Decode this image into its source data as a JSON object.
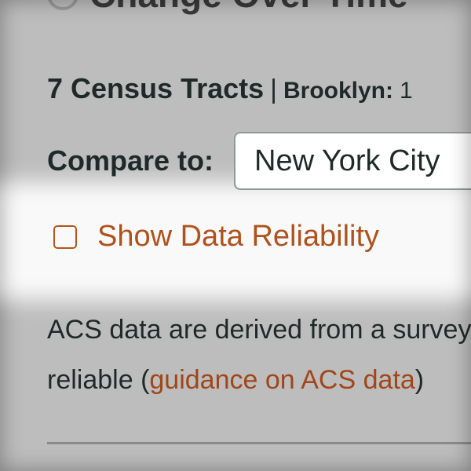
{
  "header": {
    "title": "Change Over Time"
  },
  "selection": {
    "count": "7 Census Tracts",
    "separator": "|",
    "borough": "Brooklyn:",
    "borough_extra": "1"
  },
  "compare": {
    "label": "Compare to:",
    "selected": "New York City"
  },
  "reliability": {
    "label": "Show Data Reliability",
    "checked": false
  },
  "note": {
    "line1": "ACS data are derived from a survey",
    "line2_prefix": "reliable (",
    "link_text": "guidance on ACS data",
    "line2_suffix": ")"
  },
  "colors": {
    "accent": "#b0521d",
    "text": "#1f2a28",
    "overlay": "#bdbdbd"
  }
}
